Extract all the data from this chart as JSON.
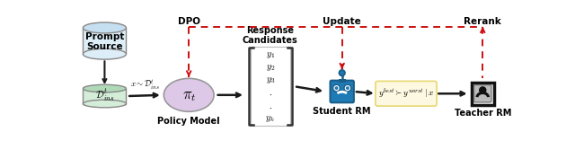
{
  "bg_color": "#ffffff",
  "fig_width": 6.4,
  "fig_height": 1.76,
  "dpi": 100,
  "prompt_source_label": "Prompt\nSource",
  "dataset_label": "$\\mathcal{D}^t_{ins}$",
  "policy_label": "$\\pi_t$",
  "policy_bottom_label": "Policy Model",
  "response_top_label": "Response\nCandidates",
  "response_items": [
    "$y_1$",
    "$y_2$",
    "$y_3$",
    "$\\cdot$",
    "$\\cdot$",
    "$y_k$"
  ],
  "student_label": "Student RM",
  "preference_label": "$y^{best} \\succ y^{worst} \\mid x$",
  "teacher_label": "Teacher RM",
  "dpo_label": "DPO",
  "update_label": "Update",
  "rerank_label": "Rerank",
  "sampling_label": "$x \\sim \\mathcal{D}^t_{ins}$",
  "cylinder_top_color": "#c5dff0",
  "cylinder_body_color": "#ddeef8",
  "dataset_top_color": "#b0d9b8",
  "dataset_body_color": "#d4edd8",
  "policy_color": "#ddc8e8",
  "preference_box_color": "#fdf8e1",
  "preference_box_edge": "#e8d870",
  "student_blue_dark": "#1a5e8a",
  "student_blue": "#1f7bb5",
  "student_blue_light": "#4fa3d4",
  "arrow_color": "#1a1a1a",
  "red_arrow_color": "#cc1111"
}
